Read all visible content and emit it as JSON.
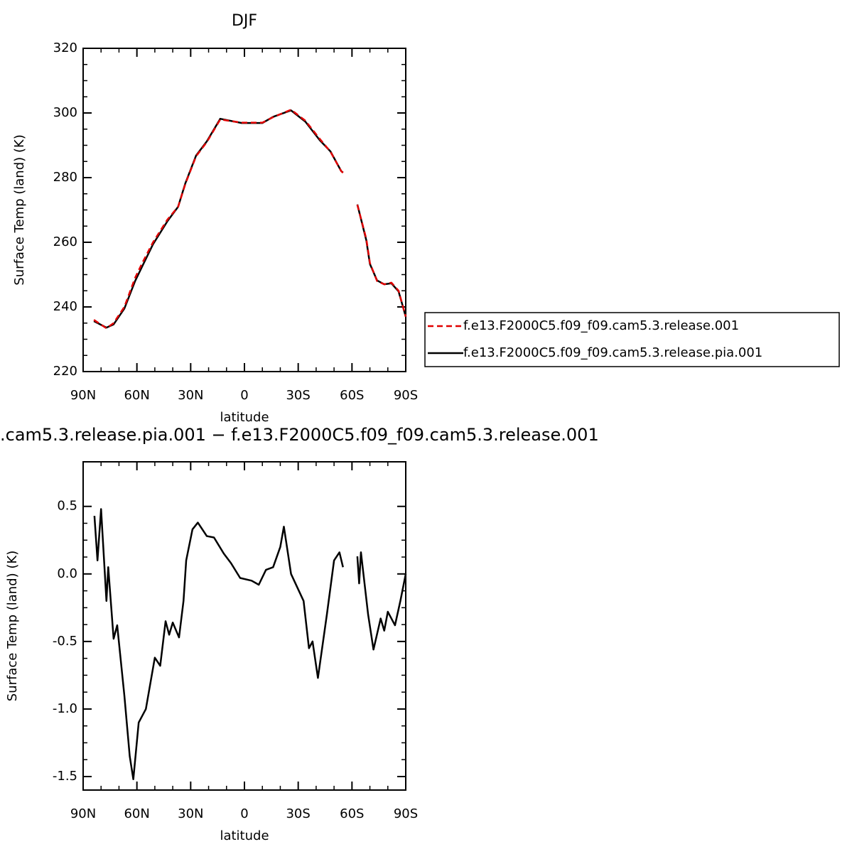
{
  "chart_data": [
    {
      "type": "line",
      "title": "DJF",
      "xlabel": "latitude",
      "ylabel": "Surface Temp (land) (K)",
      "x": [
        84,
        77,
        73,
        67,
        61,
        57,
        51,
        43,
        37,
        33,
        27,
        21,
        13.5,
        1.6,
        -10,
        -16,
        -26,
        -34,
        -42,
        -48,
        -54,
        -55,
        -59,
        -63,
        -68,
        -70,
        -74,
        -78,
        -82,
        -86,
        -90
      ],
      "xlim": [
        90,
        -90
      ],
      "xticks": [
        {
          "value": 90,
          "label": "90N"
        },
        {
          "value": 60,
          "label": "60N"
        },
        {
          "value": 30,
          "label": "30N"
        },
        0,
        {
          "value": -30,
          "label": "30S"
        },
        {
          "value": -60,
          "label": "60S"
        },
        {
          "value": -90,
          "label": "90S"
        }
      ],
      "ylim": [
        220,
        320
      ],
      "yticks": [
        220,
        240,
        260,
        280,
        300,
        320
      ],
      "legend": "right",
      "series": [
        {
          "name": "f.e13.F2000C5.f09_f09.cam5.3.release.001",
          "color": "#e00000",
          "linestyle": "dashed",
          "values": [
            236,
            233.4,
            235,
            240,
            249,
            253.6,
            260,
            267,
            271,
            278,
            286.6,
            291,
            298,
            297,
            297,
            298.7,
            301,
            297.6,
            292,
            288,
            282,
            281.5,
            null,
            271.6,
            261,
            253.6,
            248,
            247,
            247.5,
            245,
            237
          ]
        },
        {
          "name": "f.e13.F2000C5.f09_f09.cam5.3.release.pia.001",
          "color": "#000000",
          "linestyle": "solid",
          "values": [
            235.6,
            233.6,
            234.6,
            239.5,
            248,
            252.6,
            259.4,
            266.5,
            271,
            278.2,
            286.8,
            291.2,
            298.2,
            296.9,
            296.9,
            298.8,
            300.8,
            297.3,
            291.6,
            288.1,
            282,
            281.6,
            null,
            271.7,
            260.6,
            253.3,
            248.2,
            247,
            247.3,
            244.8,
            237
          ]
        }
      ]
    },
    {
      "type": "line",
      "title": ".cam5.3.release.pia.001 − f.e13.F2000C5.f09_f09.cam5.3.release.001",
      "xlabel": "latitude",
      "ylabel": "Surface Temp (land) (K)",
      "x": [
        83.7,
        82,
        80,
        77,
        76,
        73,
        71,
        67,
        64,
        62,
        59,
        55,
        50,
        47,
        44,
        42,
        40,
        36.5,
        34,
        32.5,
        29,
        26,
        21,
        17,
        11.5,
        7.5,
        2.4,
        -4,
        -8,
        -12,
        -16,
        -20,
        -22,
        -26,
        -33,
        -36,
        -38,
        -41,
        -46,
        -50,
        -53,
        -55,
        -59,
        -63,
        -64,
        -65,
        -69,
        -72,
        -76,
        -78,
        -80,
        -84,
        -87,
        -90
      ],
      "xlim": [
        90,
        -90
      ],
      "xticks": [
        {
          "value": 90,
          "label": "90N"
        },
        {
          "value": 60,
          "label": "60N"
        },
        {
          "value": 30,
          "label": "30N"
        },
        0,
        {
          "value": -30,
          "label": "30S"
        },
        {
          "value": -60,
          "label": "60S"
        },
        {
          "value": -90,
          "label": "90S"
        }
      ],
      "ylim": [
        -1.6,
        0.83
      ],
      "yticks": [
        -1.5,
        {
          "value": -1.0,
          "label": "-1.0"
        },
        -0.5,
        {
          "value": 0,
          "label": "0.0"
        },
        0.5
      ],
      "series": [
        {
          "color": "#000000",
          "linestyle": "solid",
          "values": [
            0.43,
            0.1,
            0.48,
            -0.2,
            0.05,
            -0.48,
            -0.38,
            -0.9,
            -1.35,
            -1.52,
            -1.1,
            -1.0,
            -0.62,
            -0.68,
            -0.35,
            -0.45,
            -0.36,
            -0.47,
            -0.2,
            0.1,
            0.33,
            0.38,
            0.28,
            0.27,
            0.15,
            0.08,
            -0.03,
            -0.05,
            -0.08,
            0.03,
            0.05,
            0.2,
            0.35,
            0.0,
            -0.2,
            -0.55,
            -0.5,
            -0.77,
            -0.3,
            0.1,
            0.16,
            0.05,
            null,
            0.13,
            -0.07,
            0.16,
            -0.3,
            -0.56,
            -0.33,
            -0.42,
            -0.28,
            -0.38,
            -0.2,
            0.0
          ]
        }
      ]
    }
  ]
}
